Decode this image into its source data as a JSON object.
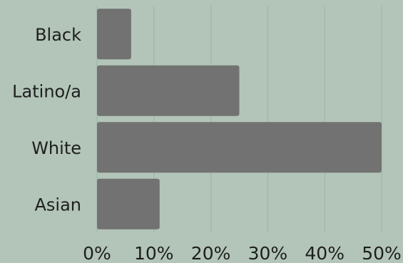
{
  "chart_data": {
    "type": "bar",
    "orientation": "horizontal",
    "categories": [
      "Black",
      "Latino/a",
      "White",
      "Asian"
    ],
    "values": [
      6,
      25,
      50,
      11
    ],
    "xlim": [
      0,
      50
    ],
    "x_ticks": [
      "0%",
      "10%",
      "20%",
      "30%",
      "40%",
      "50%"
    ],
    "tick_values": [
      0,
      10,
      20,
      30,
      40,
      50
    ],
    "grid": true,
    "bar_color": "#727272",
    "background_color": "#b2c5b8",
    "gridline_color": "#9fb2a6",
    "text_color": "#1e1e1e"
  }
}
